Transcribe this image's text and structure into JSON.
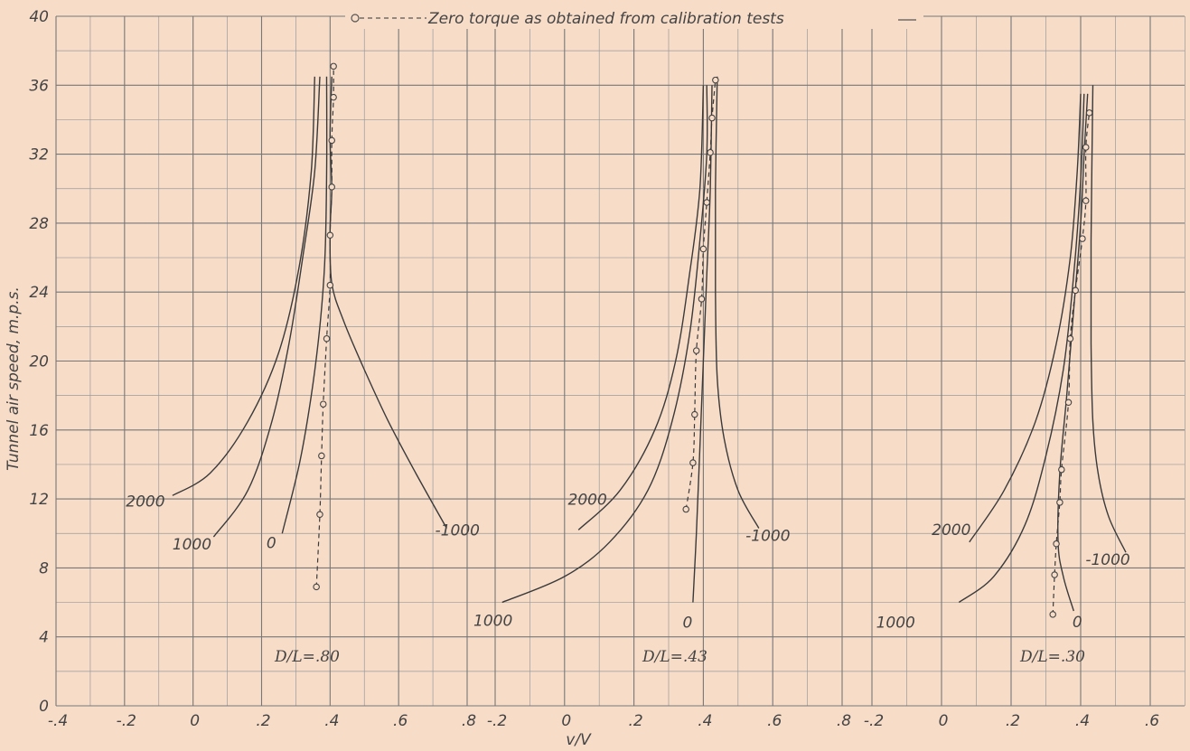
{
  "chart_data": {
    "type": "line",
    "ylabel": "Tunnel air speed, m.p.s.",
    "xlabel": "v/V",
    "ylim": [
      0,
      40
    ],
    "yticks": [
      "0",
      "4",
      "8",
      "12",
      "16",
      "20",
      "24",
      "28",
      "32",
      "36",
      "40"
    ],
    "grid": true,
    "legend": {
      "label": "Zero torque as obtained from calibration tests",
      "placement": "top-center"
    },
    "panels": [
      {
        "title": "D/L=.80",
        "xlim": [
          -0.4,
          0.84
        ],
        "xticks": [
          "-.4",
          "-.2",
          "0",
          ".2",
          ".4",
          ".6",
          ".8"
        ],
        "curves": [
          {
            "name": "2000",
            "points": [
              [
                -0.06,
                12.2
              ],
              [
                0.05,
                13.5
              ],
              [
                0.16,
                16.5
              ],
              [
                0.25,
                20.5
              ],
              [
                0.31,
                25.5
              ],
              [
                0.345,
                31.0
              ],
              [
                0.355,
                36.5
              ]
            ]
          },
          {
            "name": "1000",
            "points": [
              [
                0.06,
                9.8
              ],
              [
                0.16,
                12.5
              ],
              [
                0.23,
                16.5
              ],
              [
                0.28,
                21.0
              ],
              [
                0.32,
                26.0
              ],
              [
                0.355,
                31.0
              ],
              [
                0.37,
                36.5
              ]
            ]
          },
          {
            "name": "0",
            "points": [
              [
                0.26,
                10.0
              ],
              [
                0.31,
                14.0
              ],
              [
                0.345,
                18.0
              ],
              [
                0.37,
                22.0
              ],
              [
                0.385,
                26.0
              ],
              [
                0.39,
                31.0
              ],
              [
                0.39,
                36.5
              ]
            ]
          },
          {
            "name": "-1000",
            "points": [
              [
                0.74,
                10.3
              ],
              [
                0.65,
                13.5
              ],
              [
                0.57,
                16.5
              ],
              [
                0.5,
                19.5
              ],
              [
                0.44,
                22.3
              ],
              [
                0.405,
                24.5
              ],
              [
                0.4,
                27.5
              ],
              [
                0.405,
                30.0
              ],
              [
                0.4,
                33.0
              ],
              [
                0.405,
                36.5
              ]
            ]
          }
        ],
        "calibration": [
          [
            0.36,
            6.9
          ],
          [
            0.37,
            11.1
          ],
          [
            0.375,
            14.5
          ],
          [
            0.38,
            17.5
          ],
          [
            0.39,
            21.3
          ],
          [
            0.4,
            24.4
          ],
          [
            0.4,
            27.3
          ],
          [
            0.405,
            30.1
          ],
          [
            0.405,
            32.8
          ],
          [
            0.41,
            35.3
          ],
          [
            0.41,
            37.1
          ]
        ]
      },
      {
        "title": "D/L=.43",
        "xlim": [
          -0.2,
          0.88
        ],
        "xticks": [
          "-.2",
          "0",
          ".2",
          ".4",
          ".6",
          ".8"
        ],
        "curves": [
          {
            "name": "2000",
            "points": [
              [
                0.04,
                10.2
              ],
              [
                0.16,
                12.5
              ],
              [
                0.26,
                16.0
              ],
              [
                0.32,
                20.0
              ],
              [
                0.36,
                25.0
              ],
              [
                0.39,
                30.0
              ],
              [
                0.4,
                36.0
              ]
            ]
          },
          {
            "name": "1000",
            "points": [
              [
                -0.18,
                6.0
              ],
              [
                0.0,
                7.5
              ],
              [
                0.13,
                9.5
              ],
              [
                0.24,
                12.5
              ],
              [
                0.31,
                16.5
              ],
              [
                0.36,
                21.5
              ],
              [
                0.39,
                27.0
              ],
              [
                0.41,
                32.0
              ],
              [
                0.41,
                36.0
              ]
            ]
          },
          {
            "name": "0",
            "points": [
              [
                0.37,
                6.0
              ],
              [
                0.38,
                10.0
              ],
              [
                0.39,
                15.0
              ],
              [
                0.4,
                20.0
              ],
              [
                0.41,
                25.0
              ],
              [
                0.42,
                30.0
              ],
              [
                0.425,
                36.0
              ]
            ]
          },
          {
            "name": "-1000",
            "points": [
              [
                0.56,
                10.3
              ],
              [
                0.5,
                12.5
              ],
              [
                0.46,
                15.5
              ],
              [
                0.44,
                19.0
              ],
              [
                0.435,
                24.0
              ],
              [
                0.435,
                30.0
              ],
              [
                0.44,
                36.5
              ]
            ]
          }
        ],
        "calibration": [
          [
            0.35,
            11.4
          ],
          [
            0.37,
            14.1
          ],
          [
            0.375,
            16.9
          ],
          [
            0.38,
            20.6
          ],
          [
            0.395,
            23.6
          ],
          [
            0.4,
            26.5
          ],
          [
            0.41,
            29.2
          ],
          [
            0.42,
            32.1
          ],
          [
            0.425,
            34.1
          ],
          [
            0.435,
            36.3
          ]
        ]
      },
      {
        "title": "D/L=.30",
        "xlim": [
          -0.2,
          0.84
        ],
        "xticks": [
          "-.2",
          "0",
          ".2",
          ".4",
          ".6"
        ],
        "curves": [
          {
            "name": "2000",
            "points": [
              [
                0.08,
                9.5
              ],
              [
                0.18,
                12.5
              ],
              [
                0.27,
                16.5
              ],
              [
                0.33,
                21.0
              ],
              [
                0.37,
                26.0
              ],
              [
                0.39,
                31.0
              ],
              [
                0.4,
                35.5
              ]
            ]
          },
          {
            "name": "1000",
            "points": [
              [
                0.05,
                6.0
              ],
              [
                0.15,
                7.5
              ],
              [
                0.24,
                10.5
              ],
              [
                0.3,
                14.5
              ],
              [
                0.35,
                19.5
              ],
              [
                0.38,
                25.0
              ],
              [
                0.4,
                30.5
              ],
              [
                0.41,
                35.5
              ]
            ]
          },
          {
            "name": "0",
            "points": [
              [
                0.38,
                5.5
              ],
              [
                0.35,
                7.5
              ],
              [
                0.335,
                9.5
              ],
              [
                0.34,
                13.5
              ],
              [
                0.36,
                18.0
              ],
              [
                0.38,
                23.0
              ],
              [
                0.4,
                28.0
              ],
              [
                0.41,
                32.0
              ],
              [
                0.42,
                35.5
              ]
            ]
          },
          {
            "name": "-1000",
            "points": [
              [
                0.53,
                8.9
              ],
              [
                0.48,
                11.0
              ],
              [
                0.45,
                13.5
              ],
              [
                0.435,
                16.5
              ],
              [
                0.43,
                21.0
              ],
              [
                0.43,
                27.0
              ],
              [
                0.435,
                36.0
              ]
            ]
          }
        ],
        "calibration": [
          [
            0.32,
            5.3
          ],
          [
            0.325,
            7.6
          ],
          [
            0.33,
            9.4
          ],
          [
            0.34,
            11.8
          ],
          [
            0.345,
            13.7
          ],
          [
            0.365,
            17.6
          ],
          [
            0.37,
            21.3
          ],
          [
            0.385,
            24.1
          ],
          [
            0.405,
            27.1
          ],
          [
            0.415,
            29.3
          ],
          [
            0.415,
            32.4
          ],
          [
            0.425,
            34.4
          ]
        ]
      }
    ]
  }
}
